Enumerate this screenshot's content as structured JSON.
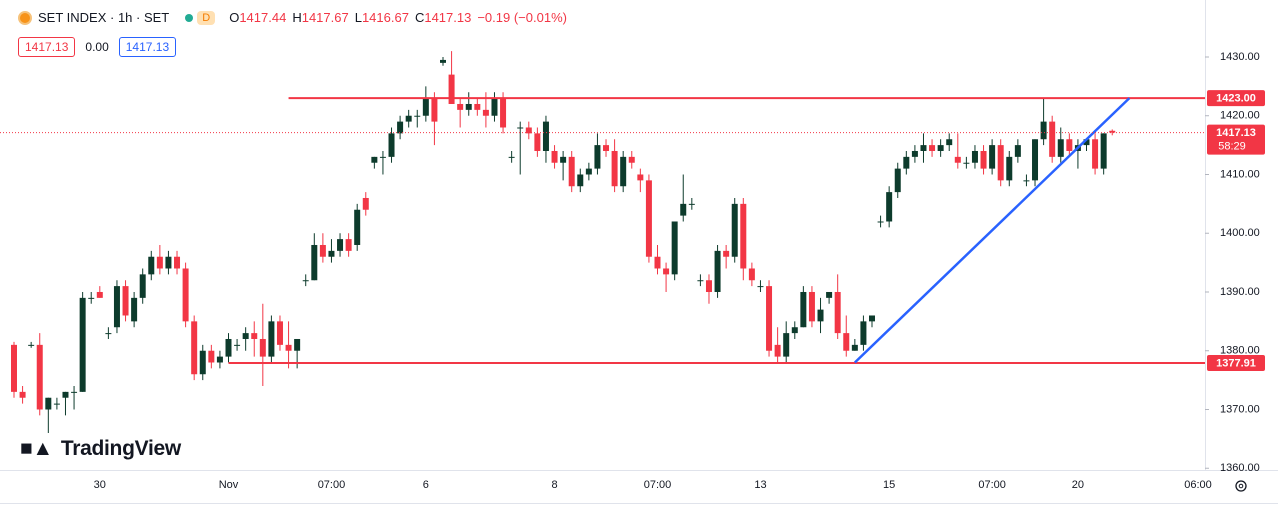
{
  "chart_data": {
    "type": "candlestick",
    "title": "SET INDEX · 1h · SET",
    "interval_badge": "D",
    "legend": [
      {
        "label": "O",
        "value": "1417.44"
      },
      {
        "label": "H",
        "value": "1417.67"
      },
      {
        "label": "L",
        "value": "1416.67"
      },
      {
        "label": "C",
        "value": "1417.13"
      }
    ],
    "change": "−0.19 (−0.01%)",
    "quote_boxes": [
      "1417.13",
      "0.00",
      "1417.13"
    ],
    "watermark": "TradingView",
    "categories": [
      null,
      null,
      null,
      null,
      null,
      null,
      null,
      null,
      null,
      null,
      "30",
      null,
      null,
      null,
      null,
      null,
      null,
      null,
      null,
      null,
      null,
      null,
      null,
      null,
      null,
      "Nov",
      null,
      null,
      null,
      null,
      null,
      null,
      null,
      null,
      null,
      null,
      null,
      "07:00",
      null,
      null,
      null,
      null,
      null,
      null,
      null,
      null,
      null,
      null,
      "6",
      null,
      null,
      null,
      null,
      null,
      null,
      null,
      null,
      null,
      null,
      null,
      null,
      null,
      null,
      "8",
      null,
      null,
      null,
      null,
      null,
      null,
      null,
      null,
      null,
      null,
      null,
      "07:00",
      null,
      null,
      null,
      null,
      null,
      null,
      null,
      null,
      null,
      null,
      null,
      "13",
      null,
      null,
      null,
      null,
      null,
      null,
      null,
      null,
      null,
      null,
      null,
      null,
      null,
      null,
      "15",
      null,
      null,
      null,
      null,
      null,
      null,
      null,
      null,
      null,
      null,
      null,
      "07:00",
      null,
      null,
      null,
      null,
      null,
      null,
      null,
      null,
      null,
      "20",
      null,
      null,
      null,
      null,
      null,
      null,
      null,
      null,
      null,
      null,
      null,
      null,
      null,
      "06:00",
      null,
      null
    ],
    "open": [
      1381,
      1373,
      1381,
      1381,
      1370,
      1371,
      1372,
      1373,
      1373,
      1389,
      1390,
      1383,
      1384,
      1391,
      1385,
      1389,
      1393,
      1396,
      1394,
      1396,
      1394,
      1385,
      1376,
      1380,
      1378,
      1379,
      1381,
      1382,
      1383,
      1382,
      1379,
      1385,
      1381,
      1380,
      1392,
      1392,
      1398,
      1396,
      1397,
      1399,
      1398,
      1406,
      1412,
      1413,
      1413,
      1417,
      1419,
      1420,
      1420,
      1423,
      1429,
      1427,
      1422,
      1421,
      1422,
      1421,
      1420,
      1423,
      1413,
      1418,
      1418,
      1417,
      1414,
      1414,
      1412,
      1413,
      1408,
      1410,
      1411,
      1415,
      1414,
      1408,
      1413,
      1410,
      1409,
      1396,
      1394,
      1393,
      1403,
      1405,
      1392,
      1392,
      1390,
      1397,
      1396,
      1405,
      1394,
      1391,
      1391,
      1381,
      1379,
      1383,
      1384,
      1390,
      1385,
      1389,
      1390,
      1383,
      1380,
      1381,
      1385,
      1402,
      1402,
      1407,
      1411,
      1413,
      1414,
      1415,
      1414,
      1415,
      1413,
      1412,
      1412,
      1414,
      1411,
      1415,
      1409,
      1413,
      1409,
      1409,
      1416,
      1419,
      1413,
      1416,
      1414,
      1415,
      1416,
      1411,
      1417.44,
      null,
      null,
      null,
      null,
      null,
      null,
      null,
      null,
      null,
      null,
      null,
      null
    ],
    "high": [
      1381.5,
      1374,
      1381.5,
      1383,
      1372,
      1372,
      1373,
      1374,
      1390,
      1390,
      1391,
      1384,
      1392,
      1392,
      1390,
      1394,
      1397,
      1398,
      1397,
      1397,
      1395,
      1386,
      1381,
      1381,
      1380,
      1383,
      1382,
      1384,
      1385,
      1388,
      1386,
      1386,
      1385,
      1382,
      1393,
      1400,
      1400,
      1399,
      1400,
      1400,
      1405,
      1407,
      1413,
      1414,
      1418,
      1420,
      1421,
      1421,
      1425,
      1424,
      1430,
      1431,
      1423,
      1424,
      1423,
      1424,
      1424,
      1424,
      1414,
      1419,
      1419,
      1418,
      1420,
      1415,
      1414,
      1414,
      1411,
      1412,
      1417,
      1416,
      1416,
      1414,
      1414,
      1411,
      1410,
      1398,
      1395,
      1402,
      1410,
      1406,
      1393,
      1393,
      1398,
      1398,
      1406,
      1406,
      1395,
      1392,
      1392,
      1384,
      1385,
      1385,
      1391,
      1391,
      1389,
      1390,
      1393,
      1386,
      1382,
      1386,
      1386,
      1403,
      1408,
      1412,
      1414,
      1415,
      1417,
      1416,
      1416,
      1417,
      1417,
      1413,
      1415,
      1415,
      1416,
      1416,
      1414,
      1416,
      1410,
      1416,
      1423,
      1420,
      1418,
      1417,
      1416,
      1416,
      1417,
      1417,
      1417.67,
      null,
      null,
      null,
      null,
      null,
      null,
      null,
      null,
      null,
      null,
      null,
      null
    ],
    "low": [
      1372,
      1371,
      1380.5,
      1369,
      1366,
      1370,
      1369,
      1370,
      1373,
      1388,
      1389,
      1382,
      1383,
      1385,
      1384,
      1388,
      1392,
      1393,
      1393,
      1393,
      1384,
      1375,
      1375,
      1377,
      1377,
      1378,
      1380,
      1380,
      1379,
      1374,
      1378,
      1380,
      1377,
      1377,
      1391,
      1392,
      1395,
      1395,
      1396,
      1396,
      1397,
      1403,
      1411,
      1410,
      1412,
      1416,
      1418,
      1418,
      1419,
      1415,
      1428.5,
      1422,
      1418,
      1420,
      1420,
      1418,
      1419,
      1417,
      1412,
      1410,
      1416,
      1413,
      1412,
      1411,
      1409,
      1407,
      1407,
      1409,
      1410,
      1413,
      1407,
      1407,
      1411,
      1407,
      1395,
      1393,
      1390,
      1392,
      1402,
      1404,
      1391,
      1388,
      1389,
      1394,
      1395,
      1392,
      1391,
      1390,
      1379,
      1378,
      1378,
      1382,
      1384,
      1384,
      1383,
      1388,
      1382,
      1379,
      1380,
      1380,
      1384,
      1401,
      1401,
      1406,
      1410,
      1412,
      1412,
      1413,
      1413,
      1414,
      1411,
      1411,
      1411,
      1410,
      1410,
      1408,
      1408,
      1412,
      1408,
      1408,
      1415,
      1412,
      1412,
      1413,
      1411,
      1414,
      1410,
      1410,
      1416.67,
      null,
      null,
      null,
      null,
      null,
      null,
      null,
      null,
      null,
      null,
      null,
      null
    ],
    "close": [
      1373,
      1372,
      1381,
      1370,
      1372,
      1371,
      1373,
      1373,
      1389,
      1389,
      1389,
      1383,
      1391,
      1386,
      1389,
      1393,
      1396,
      1394,
      1396,
      1394,
      1385,
      1376,
      1380,
      1378,
      1379,
      1382,
      1381,
      1383,
      1382,
      1379,
      1385,
      1381,
      1380,
      1382,
      1392,
      1398,
      1396,
      1397,
      1399,
      1397,
      1404,
      1404,
      1413,
      1413,
      1417,
      1419,
      1420,
      1420,
      1423,
      1419,
      1429.5,
      1422,
      1421,
      1422,
      1421,
      1420,
      1423,
      1418,
      1413,
      1418,
      1417,
      1414,
      1419,
      1412,
      1413,
      1408,
      1410,
      1411,
      1415,
      1414,
      1408,
      1413,
      1412,
      1409,
      1396,
      1394,
      1393,
      1402,
      1405,
      1405,
      1392,
      1390,
      1397,
      1396,
      1405,
      1394,
      1392,
      1391,
      1380,
      1379,
      1383,
      1384,
      1390,
      1385,
      1387,
      1390,
      1383,
      1380,
      1381,
      1385,
      1386,
      1402,
      1407,
      1411,
      1413,
      1414,
      1415,
      1414,
      1415,
      1416,
      1412,
      1412,
      1414,
      1411,
      1415,
      1409,
      1413,
      1415,
      1409,
      1416,
      1419,
      1413,
      1416,
      1414,
      1415,
      1416,
      1411,
      1417,
      1417.13,
      null,
      null,
      null,
      null,
      null,
      null,
      null,
      null,
      null,
      null,
      null,
      null
    ],
    "up_color": "#0d3b2c",
    "down_color": "#f23645",
    "ylim": [
      1359.7,
      1439.7
    ],
    "yticks": [
      {
        "value": 1360,
        "label": "1360.00"
      },
      {
        "value": 1370,
        "label": "1370.00"
      },
      {
        "value": 1380,
        "label": "1380.00"
      },
      {
        "value": 1390,
        "label": "1390.00"
      },
      {
        "value": 1400,
        "label": "1400.00"
      },
      {
        "value": 1410,
        "label": "1410.00"
      },
      {
        "value": 1420,
        "label": "1420.00"
      },
      {
        "value": 1430,
        "label": "1430.00"
      }
    ],
    "grid": false,
    "hlines": [
      {
        "value": 1423,
        "label": "1423.00",
        "start": 32
      },
      {
        "value": 1377.91,
        "label": "1377.91",
        "start": 25
      }
    ],
    "hline_color": "#f23645",
    "trendline": {
      "x": [
        98,
        130
      ],
      "values": [
        1378,
        1423
      ],
      "color": "#2962ff"
    },
    "last_price": 1417.13,
    "countdown": "58:29"
  }
}
